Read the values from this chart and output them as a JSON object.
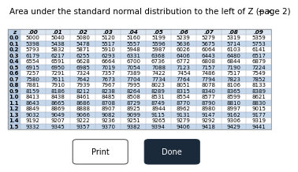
{
  "title": "Area under the standard normal distribution to the left of Z (page 2)",
  "col_headers": [
    "z",
    ".00",
    ".01",
    ".02",
    ".03",
    ".04",
    ".05",
    ".06",
    ".07",
    ".08",
    ".09"
  ],
  "rows": [
    [
      "0.0",
      "5000",
      "5040",
      "5080",
      "5120",
      "5160",
      "5199",
      "5239",
      "5279",
      "5319",
      "5359"
    ],
    [
      "0.1",
      "5398",
      "5438",
      "5478",
      "5517",
      "5557",
      "5596",
      "5636",
      "5675",
      "5714",
      "5753"
    ],
    [
      "0.2",
      "5793",
      "5832",
      "5871",
      "5910",
      "5948",
      "5987",
      "6026",
      "6064",
      "6103",
      "6141"
    ],
    [
      "0.3",
      "6179",
      "6217",
      "6255",
      "6293",
      "6331",
      "6368",
      "6406",
      "6443",
      "6480",
      "6517"
    ],
    [
      "0.4",
      "6554",
      "6591",
      "6628",
      "6664",
      "6700",
      "6736",
      "6772",
      "6808",
      "6844",
      "6879"
    ],
    [
      "0.5",
      "6915",
      "6950",
      "6985",
      "7019",
      "7054",
      "7088",
      "7123",
      "7157",
      "7190",
      "7224"
    ],
    [
      "0.6",
      "7257",
      "7291",
      "7324",
      "7357",
      "7389",
      "7422",
      "7454",
      "7486",
      "7517",
      "7549"
    ],
    [
      "0.7",
      "7580",
      "7611",
      "7642",
      "7673",
      "7704",
      "7734",
      "7764",
      "7794",
      "7823",
      "7852"
    ],
    [
      "0.8",
      "7881",
      "7910",
      "7939",
      "7967",
      "7995",
      "8023",
      "8051",
      "8078",
      "8106",
      "8133"
    ],
    [
      "0.9",
      "8159",
      "8186",
      "8212",
      "8238",
      "8264",
      "8289",
      "8315",
      "8340",
      "8365",
      "8389"
    ],
    [
      "1.0",
      "8413",
      "8438",
      "8461",
      "8485",
      "8508",
      "8531",
      "8554",
      "8577",
      "8599",
      "8621"
    ],
    [
      "1.1",
      "8643",
      "8665",
      "8686",
      "8708",
      "8729",
      "8749",
      "8770",
      "8790",
      "8810",
      "8830"
    ],
    [
      "1.2",
      "8849",
      "8869",
      "8888",
      "8907",
      "8925",
      "8944",
      "8962",
      "8980",
      "8997",
      "9015"
    ],
    [
      "1.3",
      "9032",
      "9049",
      "9066",
      "9082",
      "9099",
      "9115",
      "9131",
      "9147",
      "9162",
      "9177"
    ],
    [
      "1.4",
      "9192",
      "9207",
      "9222",
      "9236",
      "9251",
      "9265",
      "9279",
      "9292",
      "9306",
      "9319"
    ],
    [
      "1.5",
      "9332",
      "9345",
      "9357",
      "9370",
      "9382",
      "9394",
      "9406",
      "9418",
      "9429",
      "9441"
    ]
  ],
  "highlighted_rows": [
    1,
    3,
    5,
    7,
    9,
    11,
    13,
    15
  ],
  "row_highlight_color": "#c5d8ec",
  "header_bg": "#dce6f1",
  "z_col_highlight": "#b8cce4",
  "bg_color": "#ffffff",
  "print_btn_color": "#ffffff",
  "done_btn_color": "#1a2a3a",
  "title_fontsize": 7.5,
  "table_fontsize": 5.0,
  "header_fontsize": 5.2
}
